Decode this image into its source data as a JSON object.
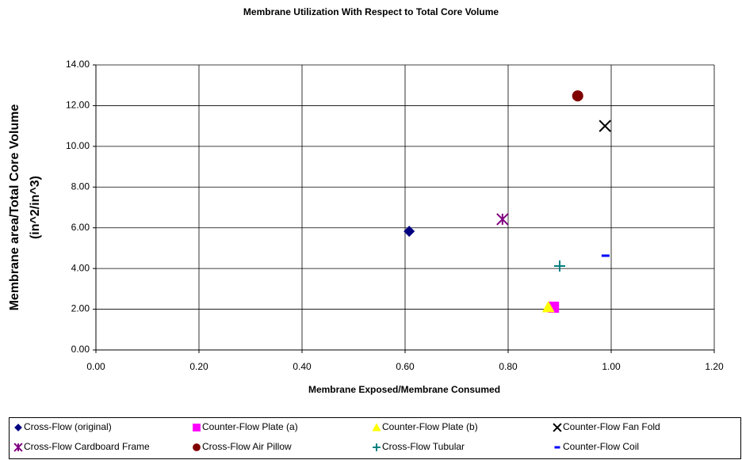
{
  "chart_data": {
    "type": "scatter",
    "title": "Membrane Utilization With Respect to Total Core Volume",
    "xlabel": "Membrane Exposed/Membrane Consumed",
    "ylabel": [
      "Membrane area/Total Core Volume",
      "(in^2/in^3)"
    ],
    "xlim": [
      0,
      1.2
    ],
    "xticks": [
      {
        "value": 0,
        "label": "0.00"
      },
      {
        "value": 0.2,
        "label": "0.20"
      },
      {
        "value": 0.4,
        "label": "0.40"
      },
      {
        "value": 0.6,
        "label": "0.60"
      },
      {
        "value": 0.8,
        "label": "0.80"
      },
      {
        "value": 1,
        "label": "1.00"
      },
      {
        "value": 1.2,
        "label": "1.20"
      }
    ],
    "ylim": [
      0,
      14
    ],
    "yticks": [
      {
        "value": 0,
        "label": "0.00"
      },
      {
        "value": 2,
        "label": "2.00"
      },
      {
        "value": 4,
        "label": "4.00"
      },
      {
        "value": 6,
        "label": "6.00"
      },
      {
        "value": 8,
        "label": "8.00"
      },
      {
        "value": 10,
        "label": "10.00"
      },
      {
        "value": 12,
        "label": "12.00"
      },
      {
        "value": 14,
        "label": "14.00"
      }
    ],
    "grid": true,
    "legend": "bottom",
    "series": [
      {
        "name": "Cross-Flow (original)",
        "color": "#000080",
        "marker": "diamond",
        "x": [
          0.608
        ],
        "values": [
          5.83
        ]
      },
      {
        "name": "Counter-Flow Plate (a)",
        "color": "#ff00ff",
        "marker": "square",
        "x": [
          0.888
        ],
        "values": [
          2.1
        ]
      },
      {
        "name": "Counter-Flow Plate (b)",
        "color": "#ffff00",
        "marker": "triangle",
        "x": [
          0.878
        ],
        "values": [
          2.1
        ]
      },
      {
        "name": "Counter-Flow Fan Fold",
        "color": "#000000",
        "marker": "x",
        "x": [
          0.988
        ],
        "values": [
          11.0
        ]
      },
      {
        "name": "Cross-Flow Cardboard Frame",
        "color": "#800080",
        "marker": "star",
        "x": [
          0.789
        ],
        "values": [
          6.42
        ]
      },
      {
        "name": "Cross-Flow Air Pillow",
        "color": "#800000",
        "marker": "circle",
        "x": [
          0.935
        ],
        "values": [
          12.48
        ]
      },
      {
        "name": "Cross-Flow Tubular",
        "color": "#008080",
        "marker": "plus",
        "x": [
          0.9
        ],
        "values": [
          4.12
        ]
      },
      {
        "name": "Counter-Flow Coil",
        "color": "#0000ff",
        "marker": "dash",
        "x": [
          0.989
        ],
        "values": [
          4.63
        ]
      }
    ]
  }
}
